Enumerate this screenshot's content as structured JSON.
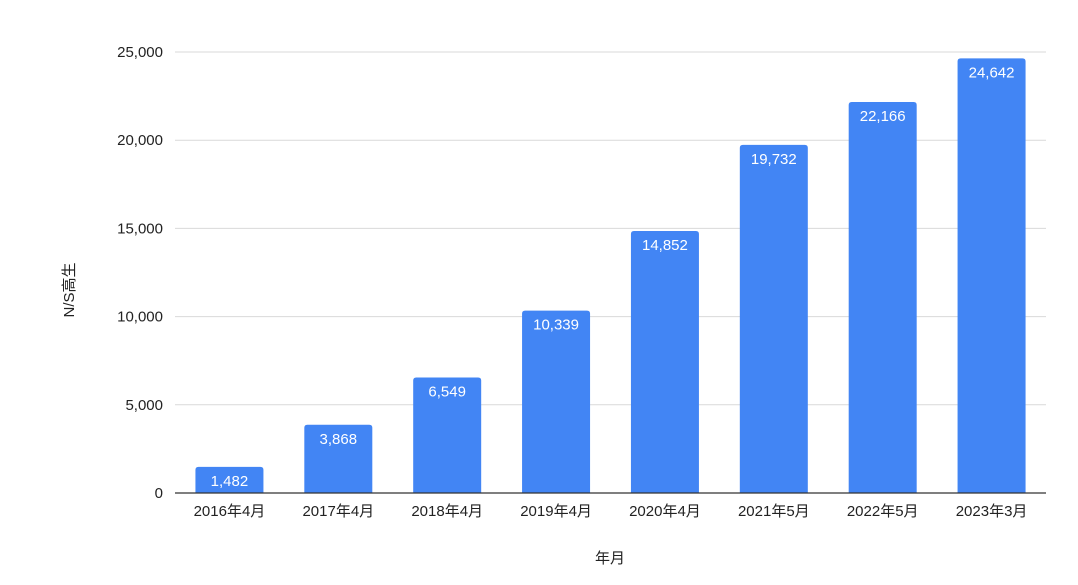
{
  "chart_data": {
    "type": "bar",
    "categories": [
      "2016年4月",
      "2017年4月",
      "2018年4月",
      "2019年4月",
      "2020年4月",
      "2021年5月",
      "2022年5月",
      "2023年3月"
    ],
    "values": [
      1482,
      3868,
      6549,
      10339,
      14852,
      19732,
      22166,
      24642
    ],
    "value_labels": [
      "1,482",
      "3,868",
      "6,549",
      "10,339",
      "14,852",
      "19,732",
      "22,166",
      "24,642"
    ],
    "title": "",
    "xlabel": "年月",
    "ylabel": "N/S高生",
    "ylim": [
      0,
      25000
    ],
    "yticks": [
      0,
      5000,
      10000,
      15000,
      20000,
      25000
    ],
    "ytick_labels": [
      "0",
      "5,000",
      "10,000",
      "15,000",
      "20,000",
      "25,000"
    ],
    "grid": true,
    "legend": "none",
    "colors": {
      "bar": "#4285f4",
      "grid": "#d9d9d9",
      "text": "#222222",
      "data_label": "#ffffff"
    }
  }
}
